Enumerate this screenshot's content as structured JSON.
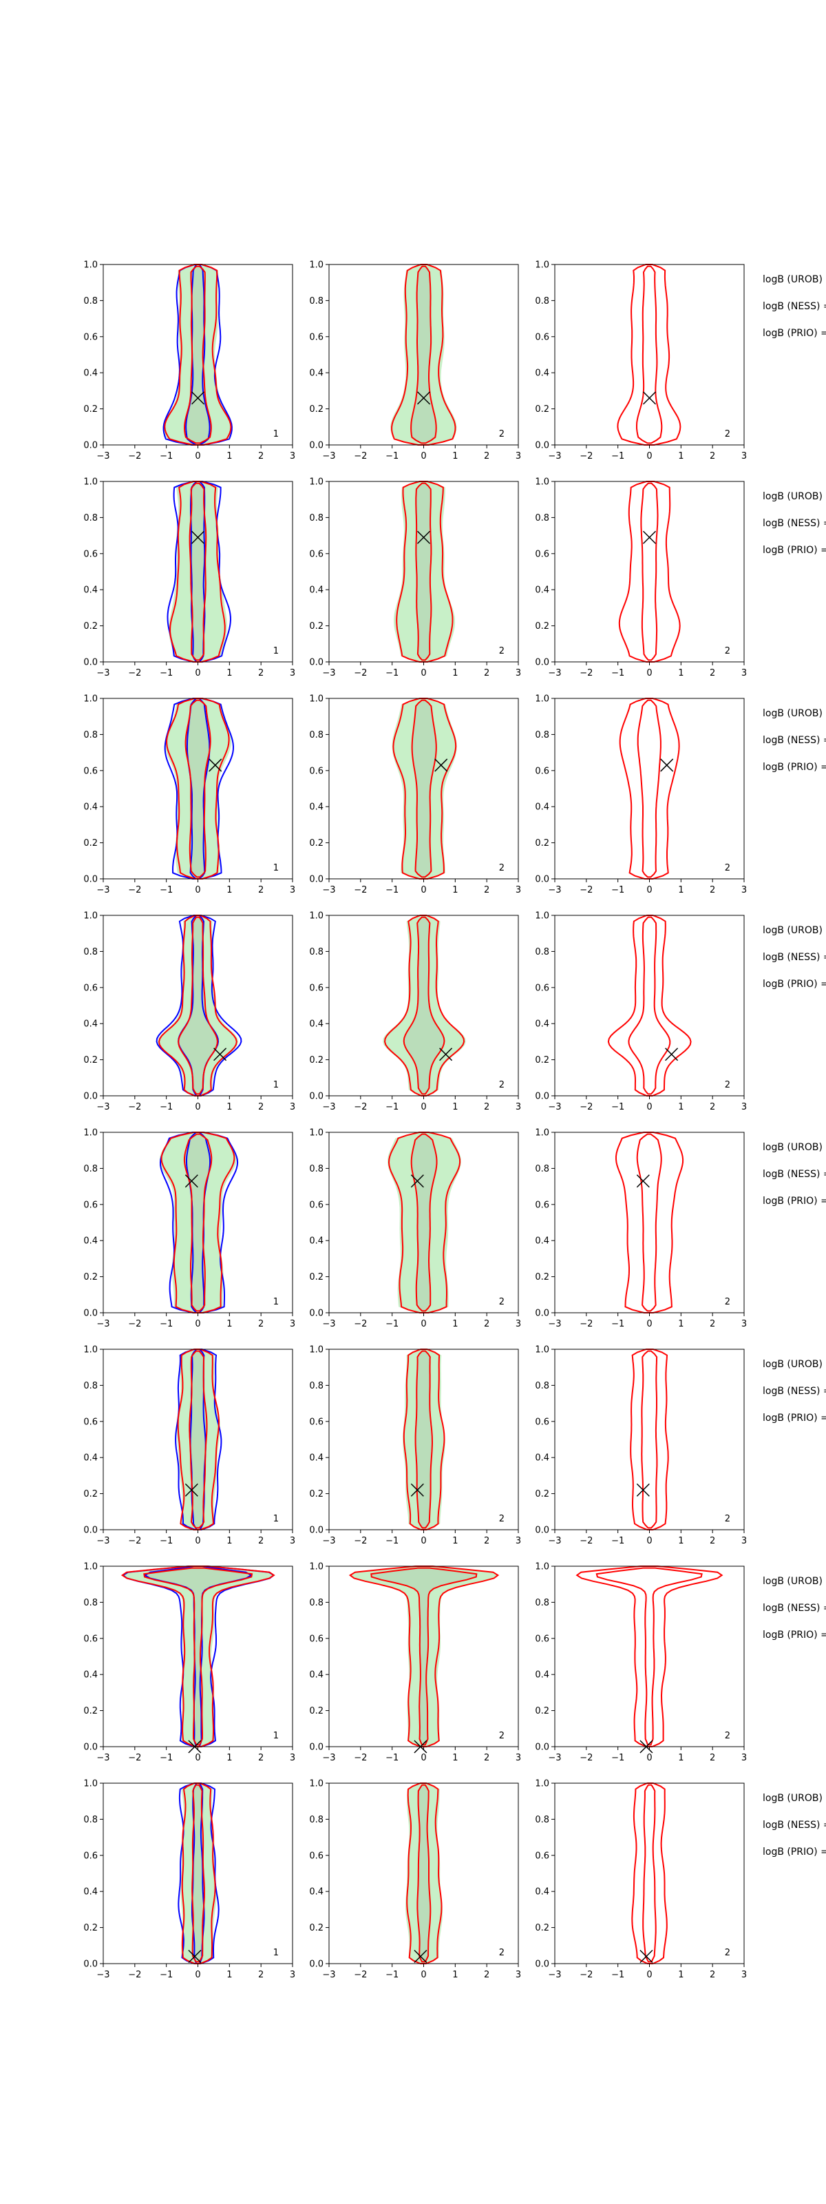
{
  "chart_data": {
    "type": "contour",
    "grid": false,
    "xlim": [
      -3,
      3
    ],
    "ylim": [
      0,
      1
    ],
    "xticks": [
      -3,
      -2,
      -1,
      0,
      1,
      2,
      3
    ],
    "yticks": [
      0.0,
      0.2,
      0.4,
      0.6,
      0.8,
      1.0
    ],
    "xtick_labels": [
      "−3",
      "−2",
      "−1",
      "0",
      "1",
      "2",
      "3"
    ],
    "ytick_labels": [
      "0.0",
      "0.2",
      "0.4",
      "0.6",
      "0.8",
      "1.0"
    ],
    "panel_labels": [
      "1",
      "2",
      "2"
    ],
    "colors": {
      "blue": "#0000ff",
      "red": "#ff0000",
      "fill_outer": "#c8f0c8",
      "fill_inner": "#b4d4b4",
      "marker": "#000000"
    },
    "side_labels": [
      "logB (UROB) =",
      "logB (NESS) =",
      "logB (PRIO) ="
    ],
    "rows": [
      {
        "marker": [
          0.0,
          0.26
        ]
      },
      {
        "marker": [
          0.0,
          0.69
        ]
      },
      {
        "marker": [
          0.55,
          0.63
        ]
      },
      {
        "marker": [
          0.7,
          0.23
        ]
      },
      {
        "marker": [
          -0.2,
          0.73
        ]
      },
      {
        "marker": [
          -0.2,
          0.22
        ]
      },
      {
        "marker": [
          -0.1,
          0.0
        ]
      },
      {
        "marker": [
          -0.1,
          0.04
        ]
      }
    ]
  }
}
